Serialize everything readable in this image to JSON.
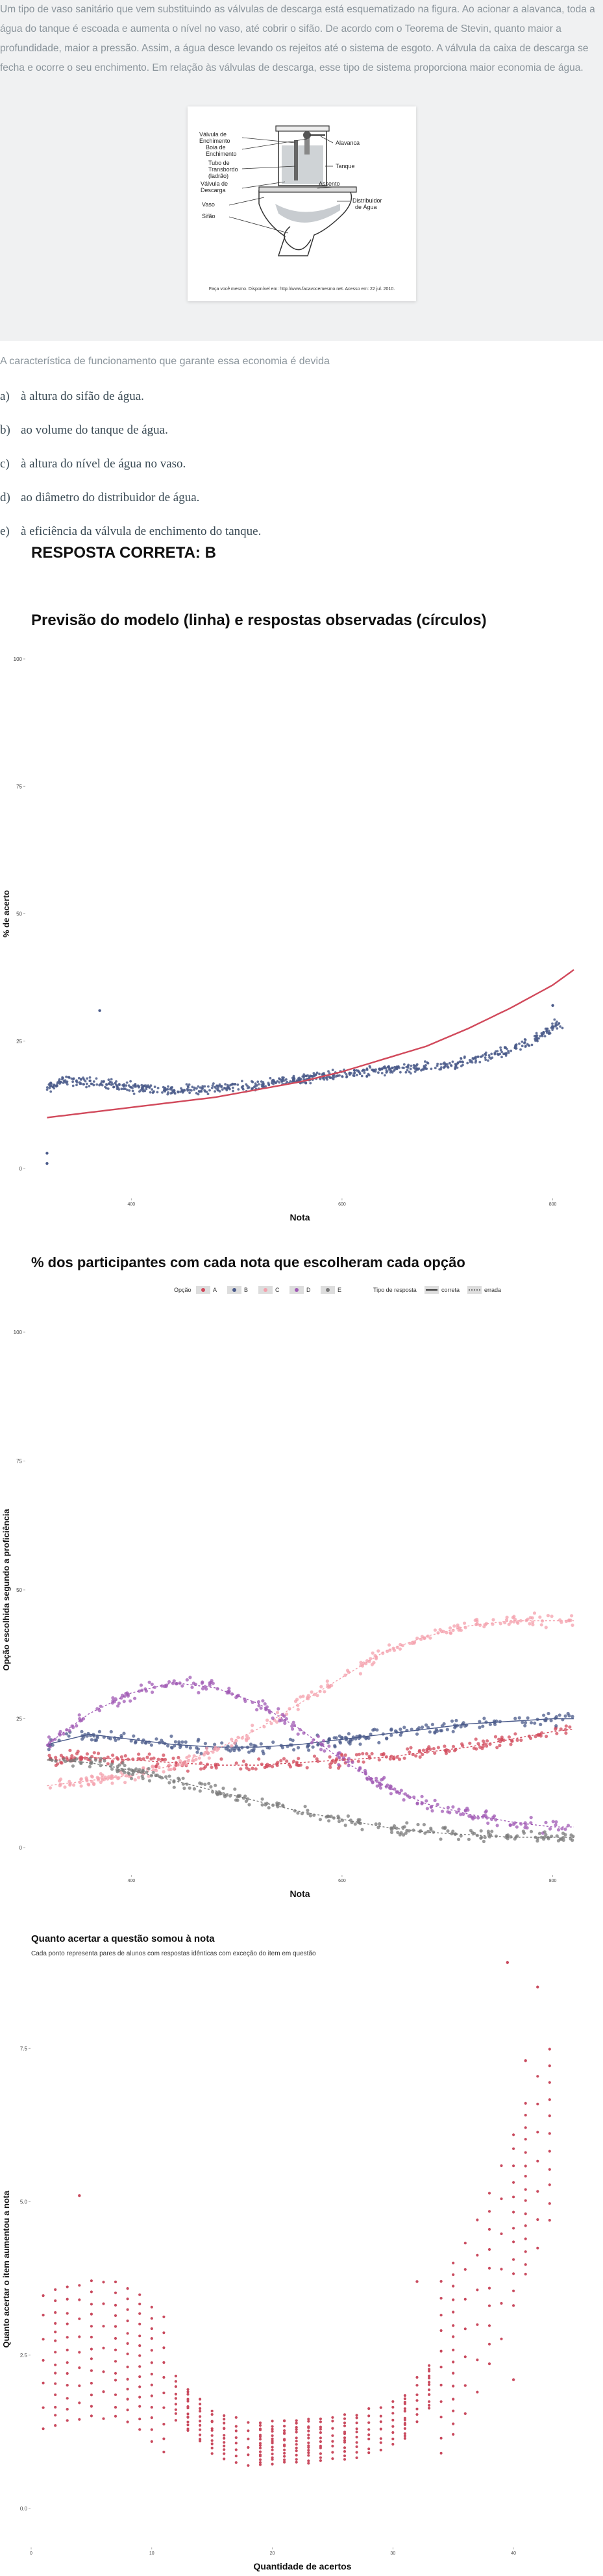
{
  "question": {
    "statement": "Um tipo de vaso sanitário que vem substituindo as válvulas de descarga está esquematizado na figura. Ao acionar a alavanca, toda a água do tanque é escoada e aumenta o nível no vaso, até cobrir o sifão. De acordo com o Teorema de Stevin, quanto maior a profundidade, maior a pressão. Assim, a água desce levando os rejeitos até o sistema de esgoto. A válvula da caixa de descarga se fecha e ocorre o seu enchimento. Em relação às válvulas de descarga, esse tipo de sistema proporciona maior economia de água.",
    "figure_labels": {
      "valvula_enchimento": [
        "Válvula de",
        "Enchimento"
      ],
      "alavanca": "Alavanca",
      "boia": [
        "Boia de",
        "Enchimento"
      ],
      "tanque": "Tanque",
      "tubo": [
        "Tubo de",
        "Transbordo",
        "(ladrão)"
      ],
      "assento": "Assento",
      "valvula_descarga": [
        "Válvula de",
        "Descarga"
      ],
      "distribuidor": [
        "Distribuidor",
        "de Água"
      ],
      "vaso": "Vaso",
      "sifao": "Sifão"
    },
    "figure_caption": "Faça você mesmo. Disponível em: http://www.facavocemesmo.net. Acesso em: 22 jul. 2010.",
    "prompt": "A característica de funcionamento que garante essa economia é devida",
    "alternatives": [
      {
        "letter": "a)",
        "text": "à altura do sifão de água."
      },
      {
        "letter": "b)",
        "text": "ao volume do tanque de água."
      },
      {
        "letter": "c)",
        "text": "à altura do nível de água no vaso."
      },
      {
        "letter": "d)",
        "text": "ao diâmetro do distribuidor de água."
      },
      {
        "letter": "e)",
        "text": "à eficiência da válvula de enchimento do tanque."
      }
    ],
    "answer": "RESPOSTA CORRETA: B"
  },
  "colors": {
    "background_band": "#f0f1f2",
    "navy": "#4a5a8a",
    "red": "#d1495b",
    "pink": "#f4a0ac",
    "purple": "#a05ab4",
    "gray": "#7a7a7a",
    "crimson": "#c94a5e"
  },
  "chart_data": [
    {
      "type": "scatter",
      "title": "Previsão do modelo (linha) e respostas observadas (círculos)",
      "xlabel": "Nota",
      "ylabel": "% de acerto",
      "xlim": [
        300,
        820
      ],
      "ylim": [
        0,
        100
      ],
      "xticks": [
        400,
        600,
        800
      ],
      "yticks": [
        0,
        25,
        50,
        75,
        100
      ],
      "series": [
        {
          "name": "observed",
          "style": "points",
          "x": [
            320,
            340,
            360,
            380,
            400,
            420,
            440,
            460,
            480,
            500,
            520,
            540,
            560,
            580,
            600,
            620,
            640,
            660,
            680,
            700,
            720,
            740,
            760,
            780,
            800
          ],
          "y": [
            16,
            17.5,
            17,
            16.5,
            16,
            15.5,
            15.5,
            15.5,
            16,
            16,
            16.5,
            17,
            17.5,
            18,
            18.5,
            19,
            19.5,
            19.5,
            20,
            20.5,
            21,
            22,
            23.5,
            25,
            28
          ]
        },
        {
          "name": "model",
          "style": "line",
          "x": [
            320,
            360,
            400,
            440,
            480,
            520,
            560,
            600,
            640,
            680,
            720,
            760,
            800,
            820
          ],
          "y": [
            10,
            11,
            12,
            13,
            14,
            15.5,
            17,
            19,
            21.5,
            24,
            27.5,
            31.5,
            36,
            39
          ]
        }
      ],
      "outliers": [
        {
          "x": 320,
          "y": 1
        },
        {
          "x": 320,
          "y": 3
        },
        {
          "x": 370,
          "y": 31
        },
        {
          "x": 800,
          "y": 32
        }
      ]
    },
    {
      "type": "scatter",
      "title": "% dos participantes com cada nota que escolheram cada opção",
      "xlabel": "Nota",
      "ylabel": "Opção escolhida segundo a proficiência",
      "legend": {
        "option_label": "Opção",
        "options": [
          "A",
          "B",
          "C",
          "D",
          "E"
        ],
        "type_label": "Tipo de resposta",
        "types": [
          "correta",
          "errada"
        ]
      },
      "xlim": [
        300,
        820
      ],
      "ylim": [
        0,
        100
      ],
      "xticks": [
        400,
        600,
        800
      ],
      "yticks": [
        0,
        25,
        50,
        75,
        100
      ],
      "series": [
        {
          "name": "A",
          "color": "#d1495b",
          "x": [
            320,
            360,
            400,
            440,
            480,
            520,
            560,
            600,
            640,
            680,
            720,
            760,
            800,
            820
          ],
          "y": [
            17,
            17.5,
            17,
            16.5,
            16,
            16,
            16.5,
            17,
            17.5,
            18.5,
            19.5,
            21,
            22.5,
            23
          ]
        },
        {
          "name": "B",
          "color": "#4a5a8a",
          "x": [
            320,
            360,
            400,
            440,
            480,
            520,
            560,
            600,
            640,
            680,
            720,
            760,
            800,
            820
          ],
          "y": [
            20,
            22,
            21,
            20,
            19.5,
            19.5,
            20,
            21,
            22,
            23,
            24,
            24.5,
            25,
            25
          ]
        },
        {
          "name": "C",
          "color": "#f4a0ac",
          "x": [
            320,
            360,
            400,
            440,
            480,
            520,
            560,
            600,
            640,
            680,
            720,
            760,
            800,
            820
          ],
          "y": [
            12,
            13,
            14,
            16,
            19,
            23,
            28,
            33,
            38,
            41,
            43,
            44,
            44,
            44
          ]
        },
        {
          "name": "D",
          "color": "#a05ab4",
          "x": [
            320,
            360,
            400,
            440,
            480,
            520,
            560,
            600,
            640,
            680,
            720,
            760,
            800,
            820
          ],
          "y": [
            20,
            26,
            30,
            32,
            31,
            28,
            23,
            17,
            12,
            8.5,
            6.5,
            5,
            4,
            4
          ]
        },
        {
          "name": "E",
          "color": "#7a7a7a",
          "x": [
            320,
            360,
            400,
            440,
            480,
            520,
            560,
            600,
            640,
            680,
            720,
            760,
            800,
            820
          ],
          "y": [
            17,
            16.5,
            15,
            13,
            11,
            9,
            7,
            5.5,
            4,
            3,
            2.5,
            2,
            2,
            2
          ]
        }
      ]
    },
    {
      "type": "scatter",
      "title": "Quanto acertar a questão somou à nota",
      "subtitle": "Cada ponto representa pares de alunos com respostas idênticas com exceção do item em questão",
      "xlabel": "Quantidade de acertos",
      "ylabel": "Quanto acertar o item aumentou a nota",
      "xlim": [
        0,
        45
      ],
      "ylim": [
        -0.2,
        8
      ],
      "xticks": [
        0,
        10,
        20,
        30,
        40
      ],
      "yticks": [
        0.0,
        2.5,
        5.0,
        7.5
      ],
      "curve_x": [
        1,
        3,
        5,
        7,
        9,
        11,
        13,
        15,
        17,
        19,
        21,
        23,
        25,
        27,
        29,
        31,
        33,
        35,
        37,
        39,
        41,
        43
      ],
      "curve_y": [
        2.4,
        2.5,
        2.6,
        2.6,
        2.4,
        2.0,
        1.6,
        1.25,
        1.1,
        1.05,
        1.1,
        1.1,
        1.15,
        1.2,
        1.3,
        1.5,
        2.0,
        2.6,
        3.3,
        4.2,
        5.2,
        6.1
      ],
      "outliers": [
        {
          "x": 4,
          "y": 5.1
        },
        {
          "x": 32,
          "y": 3.7
        },
        {
          "x": 40,
          "y": 2.1
        },
        {
          "x": 41,
          "y": 7.3
        },
        {
          "x": 39.5,
          "y": 8.9
        },
        {
          "x": 42,
          "y": 8.5
        }
      ]
    }
  ]
}
